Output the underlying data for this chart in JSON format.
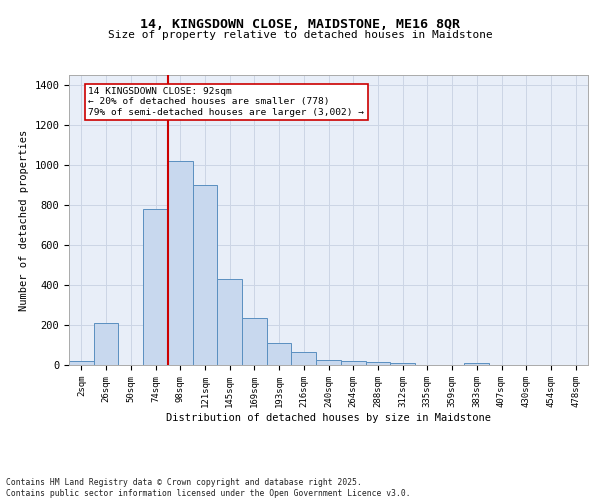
{
  "title1": "14, KINGSDOWN CLOSE, MAIDSTONE, ME16 8QR",
  "title2": "Size of property relative to detached houses in Maidstone",
  "xlabel": "Distribution of detached houses by size in Maidstone",
  "ylabel": "Number of detached properties",
  "bar_labels": [
    "2sqm",
    "26sqm",
    "50sqm",
    "74sqm",
    "98sqm",
    "121sqm",
    "145sqm",
    "169sqm",
    "193sqm",
    "216sqm",
    "240sqm",
    "264sqm",
    "288sqm",
    "312sqm",
    "335sqm",
    "359sqm",
    "383sqm",
    "407sqm",
    "430sqm",
    "454sqm",
    "478sqm"
  ],
  "bar_values": [
    20,
    210,
    0,
    780,
    1020,
    900,
    430,
    235,
    110,
    65,
    25,
    20,
    15,
    10,
    0,
    0,
    10,
    0,
    0,
    0,
    0
  ],
  "bar_color": "#c8d8ee",
  "bar_edge_color": "#5a8fc0",
  "grid_color": "#ccd5e5",
  "background_color": "#e8eef8",
  "red_line_x": 3.5,
  "red_line_color": "#cc0000",
  "annotation_text": "14 KINGSDOWN CLOSE: 92sqm\n← 20% of detached houses are smaller (778)\n79% of semi-detached houses are larger (3,002) →",
  "annotation_box_facecolor": "#ffffff",
  "annotation_box_edgecolor": "#cc0000",
  "footer_text": "Contains HM Land Registry data © Crown copyright and database right 2025.\nContains public sector information licensed under the Open Government Licence v3.0.",
  "ylim": [
    0,
    1450
  ],
  "yticks": [
    0,
    200,
    400,
    600,
    800,
    1000,
    1200,
    1400
  ],
  "fig_width": 6.0,
  "fig_height": 5.0,
  "dpi": 100
}
